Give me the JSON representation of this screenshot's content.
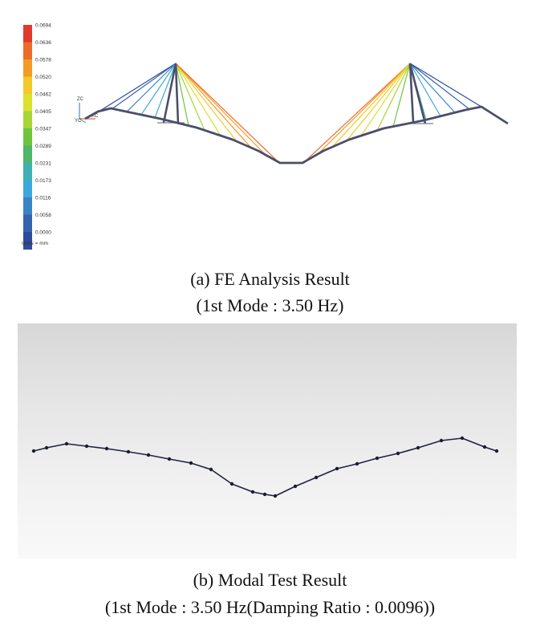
{
  "fe_result": {
    "legend": {
      "ticks": [
        "0.0694",
        "0.0636",
        "0.0578",
        "0.0520",
        "0.0462",
        "0.0405",
        "0.0347",
        "0.0289",
        "0.0231",
        "0.0173",
        "0.0116",
        "0.0058",
        "0.0000"
      ],
      "units": "Units = mm",
      "colors": [
        "#e03a2c",
        "#ee6a2a",
        "#f59a26",
        "#f2c928",
        "#d9e22c",
        "#a7d436",
        "#6ec43e",
        "#4fb66a",
        "#3fb1b1",
        "#3ca9da",
        "#3a84c6",
        "#3663b0",
        "#2f4b9c"
      ]
    },
    "axis_labels": {
      "z": "ZC",
      "x": "XC",
      "y": "YC"
    },
    "caption_line1": "(a) FE Analysis Result",
    "caption_line2": "(1st Mode : 3.50 Hz)"
  },
  "modal_test": {
    "caption_line1": "(b) Modal Test Result",
    "caption_line2": "(1st Mode : 3.50 Hz(Damping Ratio : 0.0096))"
  }
}
